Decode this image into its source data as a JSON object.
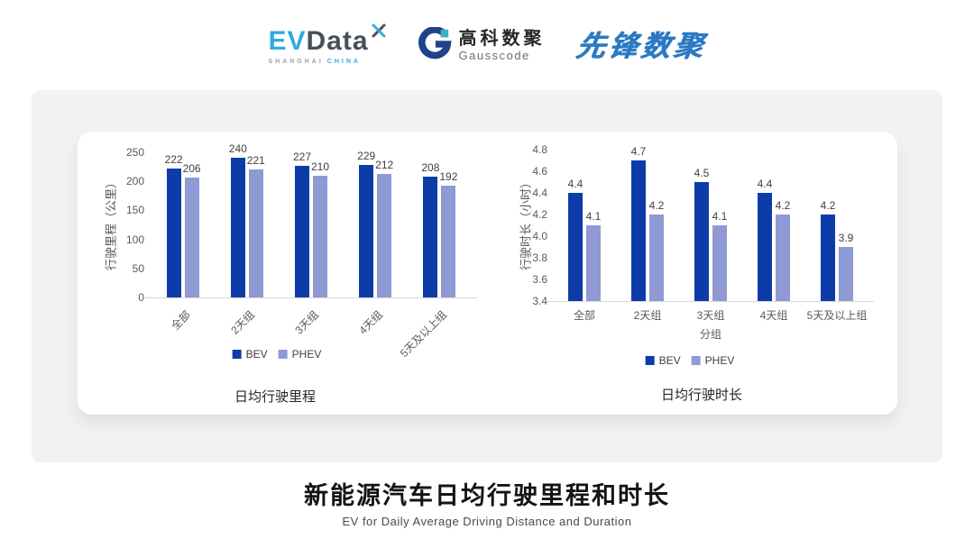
{
  "header": {
    "evdata_logo": {
      "ev": "EV",
      "data": "Data",
      "tagline_left": "SHANGHAI",
      "tagline_right": "CHINA"
    },
    "gausscode_logo": {
      "name_cn": "高科数聚",
      "name_en": "Gausscode"
    },
    "pioneer_logo": {
      "text": "先锋数聚"
    }
  },
  "colors": {
    "bev": "#0d3ca8",
    "phev": "#8f99d4",
    "axis_text": "#595959",
    "value_text": "#404040",
    "axis_line": "#d9d9d9",
    "panel_bg": "#f2f2f3",
    "evdata_cyan": "#35a9de",
    "evdata_dark": "#46505b",
    "gauss_navy": "#1e4388",
    "gauss_teal": "#39b2c8",
    "pioneer_blue": "#2b79c3"
  },
  "chart_data": [
    {
      "type": "bar",
      "title": "日均行驶里程",
      "ylabel": "行驶里程（公里）",
      "xlabel": "",
      "categories": [
        "全部",
        "2天组",
        "3天组",
        "4天组",
        "5天及以上组"
      ],
      "series": [
        {
          "name": "BEV",
          "color": "#0d3ca8",
          "values": [
            222,
            240,
            227,
            229,
            208
          ]
        },
        {
          "name": "PHEV",
          "color": "#8f99d4",
          "values": [
            206,
            221,
            210,
            212,
            192
          ]
        }
      ],
      "ylim": [
        0,
        250
      ],
      "ytick_step": 50,
      "decimals": 0,
      "grid": false,
      "legend_position": "bottom",
      "category_rotation": -45
    },
    {
      "type": "bar",
      "title": "日均行驶时长",
      "ylabel": "行驶时长（小时）",
      "xlabel": "分组",
      "categories": [
        "全部",
        "2天组",
        "3天组",
        "4天组",
        "5天及以上组"
      ],
      "series": [
        {
          "name": "BEV",
          "color": "#0d3ca8",
          "values": [
            4.4,
            4.7,
            4.5,
            4.4,
            4.2
          ]
        },
        {
          "name": "PHEV",
          "color": "#8f99d4",
          "values": [
            4.1,
            4.2,
            4.1,
            4.2,
            3.9
          ]
        }
      ],
      "ylim": [
        3.4,
        4.8
      ],
      "ytick_step": 0.2,
      "decimals": 1,
      "grid": false,
      "legend_position": "bottom",
      "category_rotation": 0
    }
  ],
  "footer": {
    "title": "新能源汽车日均行驶里程和时长",
    "subtitle": "EV for Daily Average Driving Distance and Duration"
  }
}
